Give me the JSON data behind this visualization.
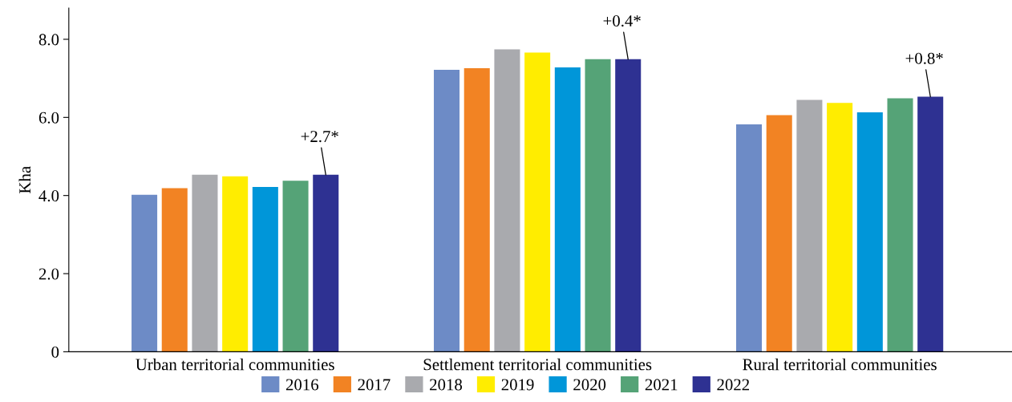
{
  "chart_data": {
    "type": "bar",
    "ylabel": "Kha",
    "categories": [
      "Urban territorial communities",
      "Settlement territorial communities",
      "Rural territorial communities"
    ],
    "series": [
      {
        "name": "2016",
        "color": "#6d8bc6",
        "values": [
          4.02,
          7.22,
          5.82
        ]
      },
      {
        "name": "2017",
        "color": "#f28323",
        "values": [
          4.19,
          7.26,
          6.06
        ]
      },
      {
        "name": "2018",
        "color": "#a9aaae",
        "values": [
          4.53,
          7.74,
          6.45
        ]
      },
      {
        "name": "2019",
        "color": "#ffed00",
        "values": [
          4.49,
          7.66,
          6.37
        ]
      },
      {
        "name": "2020",
        "color": "#0096d9",
        "values": [
          4.22,
          7.28,
          6.13
        ]
      },
      {
        "name": "2021",
        "color": "#55a377",
        "values": [
          4.38,
          7.49,
          6.49
        ]
      },
      {
        "name": "2022",
        "color": "#2e3192",
        "values": [
          4.53,
          7.49,
          6.53
        ]
      }
    ],
    "ylim": [
      0,
      8.8
    ],
    "yticks": [
      0,
      {
        "value": 2,
        "label": "2.0"
      },
      {
        "value": 4,
        "label": "4.0"
      },
      {
        "value": 6,
        "label": "6.0"
      },
      {
        "value": 8,
        "label": "8.0"
      }
    ],
    "annotations": [
      {
        "text": "+2.7*",
        "y": 4.53
      },
      {
        "text": "+0.4*",
        "y": 7.49
      },
      {
        "text": "+0.8*",
        "y": 6.53
      }
    ],
    "grid": false,
    "legend": "bottom"
  }
}
